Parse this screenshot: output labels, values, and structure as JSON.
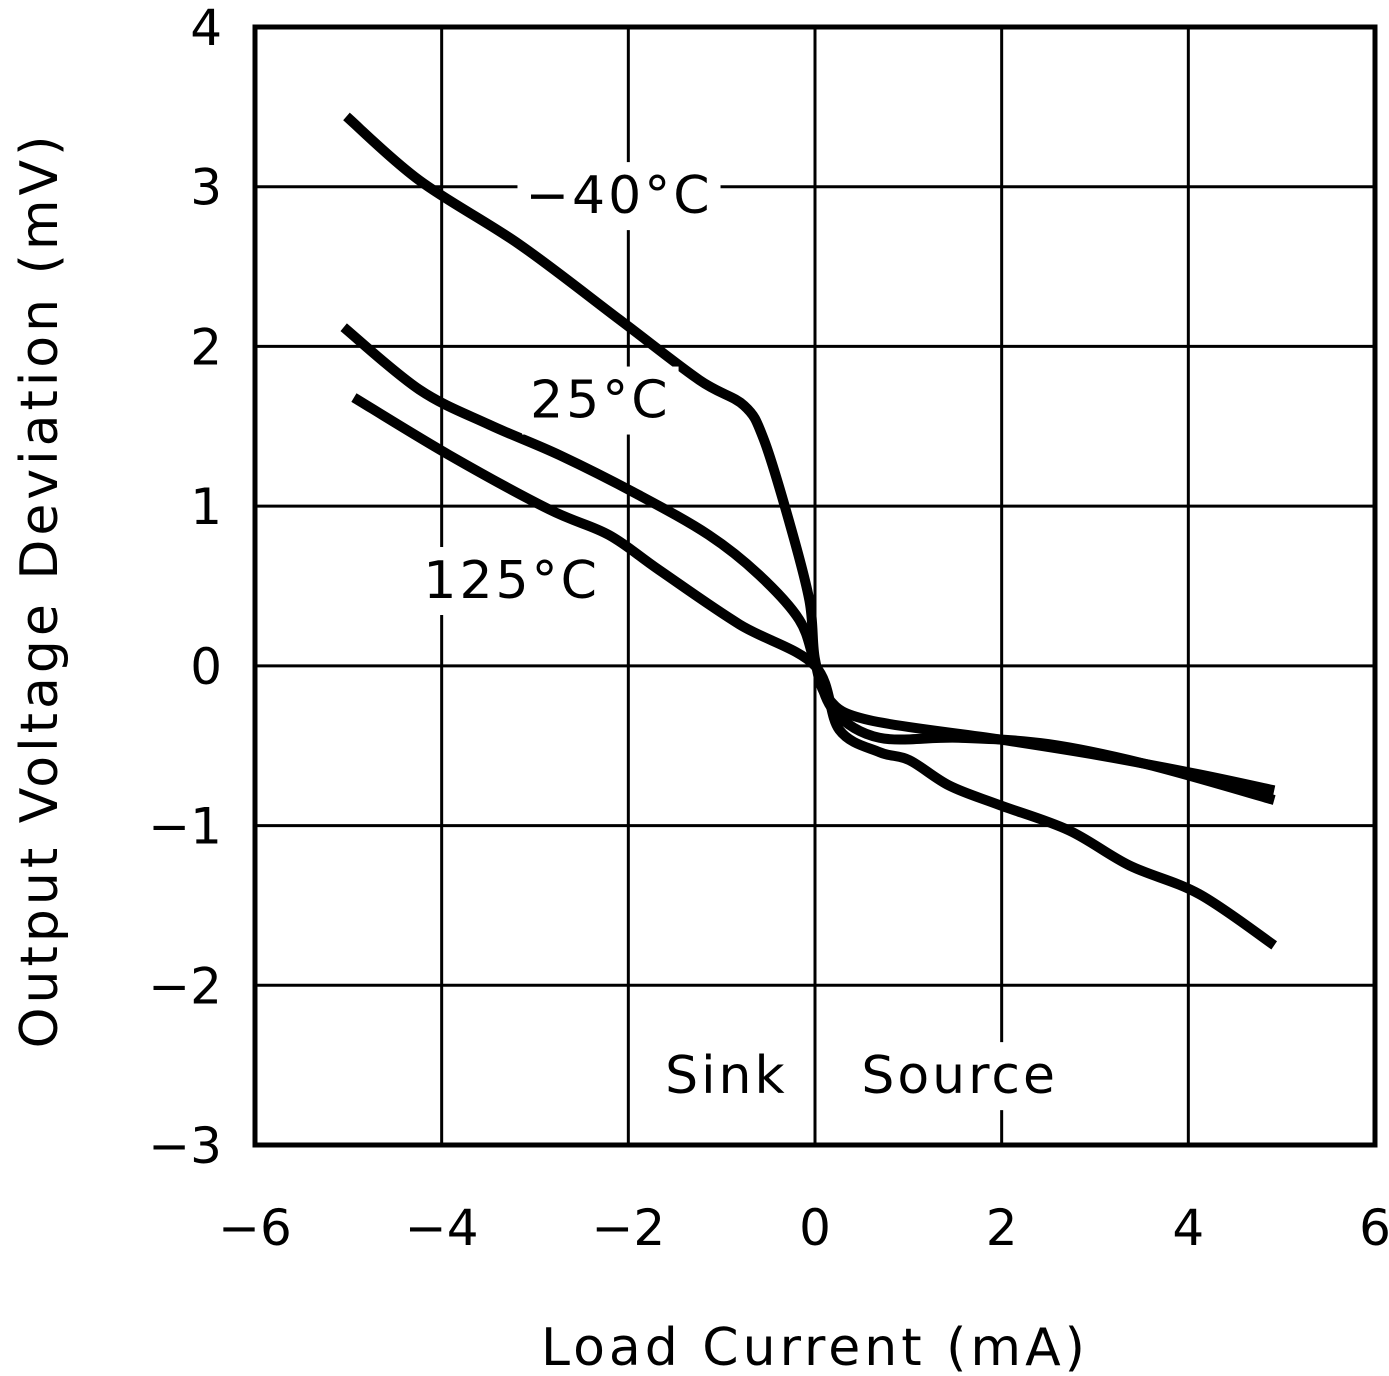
{
  "chart_data": {
    "type": "line",
    "title": "",
    "xlabel": "Load Current (mA)",
    "ylabel": "Output Voltage Deviation (mV)",
    "xlim": [
      -6,
      6
    ],
    "ylim": [
      -3,
      4
    ],
    "xticks": [
      "−6",
      "−4",
      "−2",
      "0",
      "2",
      "4",
      "6"
    ],
    "xtick_values": [
      -6,
      -4,
      -2,
      0,
      2,
      4,
      6
    ],
    "yticks": [
      "−3",
      "−2",
      "−1",
      "0",
      "1",
      "2",
      "3",
      "4"
    ],
    "ytick_values": [
      -3,
      -2,
      -1,
      0,
      1,
      2,
      3,
      4
    ],
    "grid": true,
    "line_color": "#000000",
    "series": [
      {
        "name": "−40°C",
        "x": [
          -5.02,
          -4.24,
          -3.17,
          -2.1,
          -1.24,
          -0.76,
          -0.55,
          -0.28,
          -0.06,
          0,
          0.15,
          0.58,
          1.97,
          3.04,
          4.12,
          4.92
        ],
        "y": [
          3.44,
          3.04,
          2.64,
          2.17,
          1.79,
          1.63,
          1.42,
          0.91,
          0.41,
          0.04,
          -0.21,
          -0.34,
          -0.46,
          -0.56,
          -0.68,
          -0.78
        ]
      },
      {
        "name": "25°C",
        "x": [
          -5.05,
          -4.24,
          -3.49,
          -2.74,
          -1.89,
          -1.14,
          -0.6,
          -0.17,
          0,
          0.2,
          0.69,
          1.54,
          2.5,
          3.58,
          4.92
        ],
        "y": [
          2.12,
          1.73,
          1.51,
          1.32,
          1.07,
          0.82,
          0.57,
          0.29,
          0.02,
          -0.28,
          -0.45,
          -0.45,
          -0.49,
          -0.62,
          -0.84
        ]
      },
      {
        "name": "125°C",
        "x": [
          -4.94,
          -3.92,
          -2.85,
          -2.21,
          -1.67,
          -0.81,
          0,
          0.26,
          0.69,
          1.01,
          1.44,
          1.97,
          2.72,
          3.37,
          4.12,
          4.92
        ],
        "y": [
          1.68,
          1.32,
          0.98,
          0.82,
          0.6,
          0.26,
          0,
          -0.4,
          -0.54,
          -0.59,
          -0.75,
          -0.87,
          -1.03,
          -1.25,
          -1.43,
          -1.75
        ]
      }
    ],
    "annotations": [
      {
        "text": "Sink",
        "x": -0.95,
        "y": -2.55
      },
      {
        "text": "Source",
        "x": 1.55,
        "y": -2.55
      }
    ],
    "series_label_positions": [
      {
        "x": -2.1,
        "y": 2.96
      },
      {
        "x": -2.3,
        "y": 1.68
      },
      {
        "x": -3.25,
        "y": 0.55
      }
    ]
  }
}
